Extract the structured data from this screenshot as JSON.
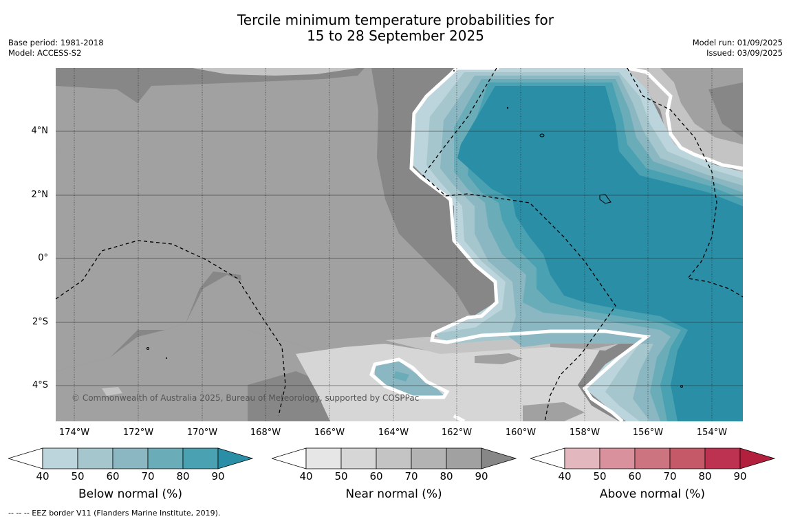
{
  "title_line1": "Tercile minimum temperature probabilities for",
  "title_line2": "15 to 28 September 2025",
  "base_period": "Base period: 1981-2018",
  "model": "Model: ACCESS-S2",
  "model_run": "Model run: 01/09/2025",
  "issued": "Issued: 03/09/2025",
  "copyright": "© Commonwealth of Australia 2025, Bureau of Meteorology, supported by COSPPac",
  "footer": "--  --  -- EEZ border V11 (Flanders Marine Institute, 2019).",
  "lat_labels": [
    "4°N",
    "2°N",
    "0°",
    "2°S",
    "4°S"
  ],
  "lon_labels": [
    "174°W",
    "172°W",
    "170°W",
    "168°W",
    "166°W",
    "164°W",
    "162°W",
    "160°W",
    "158°W",
    "156°W",
    "154°W"
  ],
  "colorbars": [
    {
      "title": "Below normal (%)",
      "ticks": [
        "40",
        "50",
        "60",
        "70",
        "80",
        "90"
      ],
      "colors": [
        "#ffffff",
        "#bcd4db",
        "#a5c6cc",
        "#8ab7c2",
        "#6aadb9",
        "#4aa1b2",
        "#2a8fa6"
      ]
    },
    {
      "title": "Near normal (%)",
      "ticks": [
        "40",
        "50",
        "60",
        "70",
        "80",
        "90"
      ],
      "colors": [
        "#ffffff",
        "#e6e6e6",
        "#d6d6d6",
        "#c4c4c4",
        "#b3b3b3",
        "#a1a1a1",
        "#878787"
      ]
    },
    {
      "title": "Above normal (%)",
      "ticks": [
        "40",
        "50",
        "60",
        "70",
        "80",
        "90"
      ],
      "colors": [
        "#ffffff",
        "#e2b7be",
        "#d9929d",
        "#cc7480",
        "#c55967",
        "#bd3250",
        "#b2203e"
      ]
    }
  ]
}
